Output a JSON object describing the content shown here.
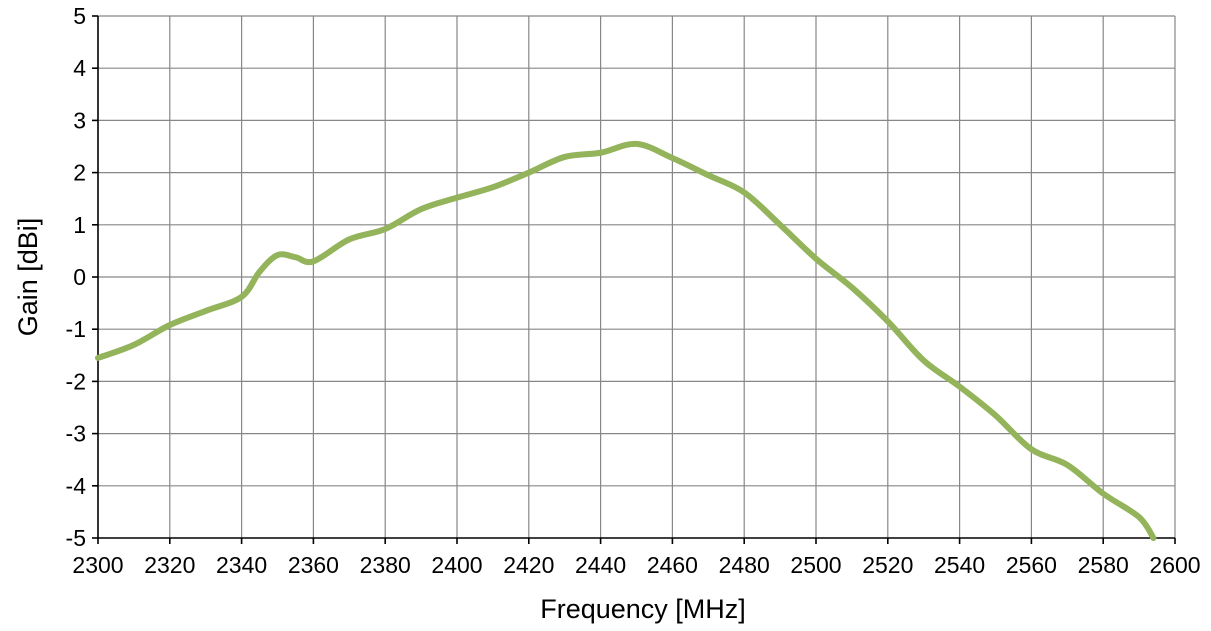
{
  "chart_data": {
    "type": "line",
    "xlabel": "Frequency [MHz]",
    "ylabel": "Gain [dBi]",
    "xlim": [
      2300,
      2600
    ],
    "ylim": [
      -5,
      5
    ],
    "x_ticks": [
      2300,
      2320,
      2340,
      2360,
      2380,
      2400,
      2420,
      2440,
      2460,
      2480,
      2500,
      2520,
      2540,
      2560,
      2580,
      2600
    ],
    "y_ticks": [
      5,
      4,
      3,
      2,
      1,
      0,
      -1,
      -2,
      -3,
      -4,
      -5
    ],
    "grid": true,
    "legend": false,
    "series": [
      {
        "color": "#93b45a",
        "x": [
          2300,
          2310,
          2320,
          2330,
          2340,
          2345,
          2350,
          2355,
          2360,
          2370,
          2380,
          2390,
          2400,
          2410,
          2420,
          2430,
          2440,
          2450,
          2460,
          2470,
          2480,
          2490,
          2500,
          2510,
          2520,
          2530,
          2540,
          2550,
          2560,
          2570,
          2580,
          2590,
          2594
        ],
        "y": [
          -1.55,
          -1.3,
          -0.92,
          -0.65,
          -0.38,
          0.1,
          0.42,
          0.38,
          0.3,
          0.72,
          0.92,
          1.3,
          1.52,
          1.72,
          2.0,
          2.3,
          2.38,
          2.55,
          2.28,
          1.95,
          1.62,
          1.0,
          0.35,
          -0.2,
          -0.85,
          -1.6,
          -2.1,
          -2.65,
          -3.3,
          -3.6,
          -4.15,
          -4.6,
          -5.0
        ]
      }
    ]
  }
}
